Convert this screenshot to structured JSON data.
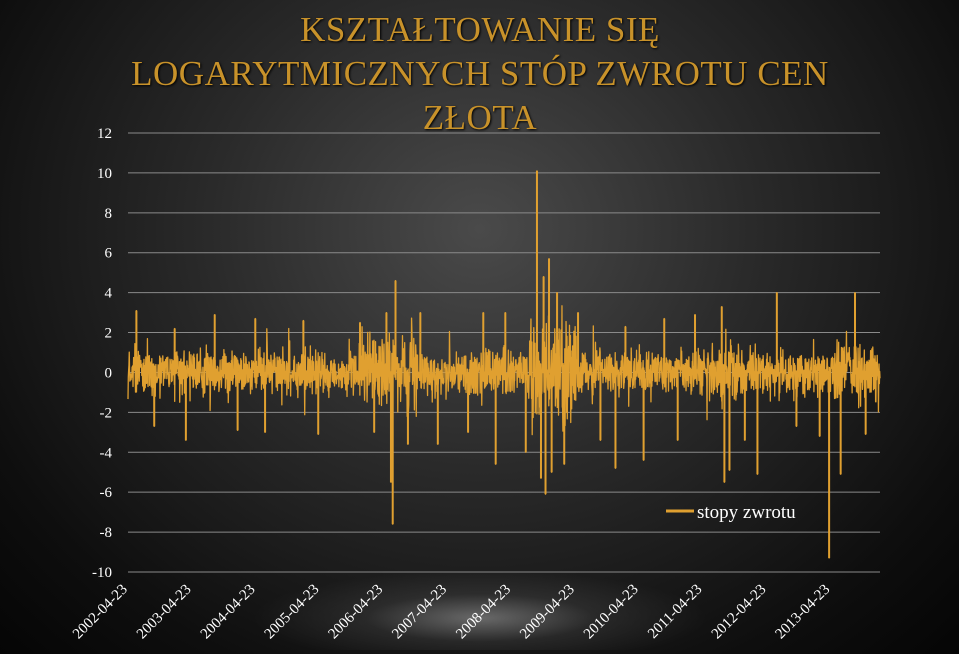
{
  "chart_data": {
    "type": "line",
    "title_lines": [
      "KSZTAŁTOWANIE SIĘ",
      "LOGARYTMICZNYCH STÓP ZWROTU CEN",
      "ZŁOTA"
    ],
    "ylim": [
      -10,
      12
    ],
    "y_ticks": [
      "12",
      "10",
      "8",
      "6",
      "4",
      "2",
      "0",
      "-2",
      "-4",
      "-6",
      "-8",
      "-10"
    ],
    "x_ticks": [
      "2002-04-23",
      "2003-04-23",
      "2004-04-23",
      "2005-04-23",
      "2006-04-23",
      "2007-04-23",
      "2008-04-23",
      "2009-04-23",
      "2010-04-23",
      "2011-04-23",
      "2012-04-23",
      "2013-04-23"
    ],
    "x_range": [
      "2002-04-23",
      "2014-01-31"
    ],
    "grid": true,
    "legend_position": "bottom-right",
    "series": [
      {
        "name": "stopy zwrotu",
        "color": "#e0a030",
        "spikes": [
          {
            "date": "2002-06-10",
            "value": 3.1
          },
          {
            "date": "2002-09-20",
            "value": -2.7
          },
          {
            "date": "2003-01-15",
            "value": 2.2
          },
          {
            "date": "2003-03-20",
            "value": -3.4
          },
          {
            "date": "2003-09-01",
            "value": 2.9
          },
          {
            "date": "2004-01-10",
            "value": -2.9
          },
          {
            "date": "2004-04-20",
            "value": 2.7
          },
          {
            "date": "2004-06-15",
            "value": -3.0
          },
          {
            "date": "2005-01-20",
            "value": 2.6
          },
          {
            "date": "2005-04-15",
            "value": -3.1
          },
          {
            "date": "2005-12-10",
            "value": 2.5
          },
          {
            "date": "2006-03-01",
            "value": -3.0
          },
          {
            "date": "2006-05-10",
            "value": 3.0
          },
          {
            "date": "2006-06-05",
            "value": -5.5
          },
          {
            "date": "2006-06-15",
            "value": -7.6
          },
          {
            "date": "2006-07-01",
            "value": 4.6
          },
          {
            "date": "2006-09-10",
            "value": -3.6
          },
          {
            "date": "2006-11-20",
            "value": 3.0
          },
          {
            "date": "2007-02-28",
            "value": -3.6
          },
          {
            "date": "2007-08-20",
            "value": -3.0
          },
          {
            "date": "2007-11-15",
            "value": 3.0
          },
          {
            "date": "2008-01-25",
            "value": -4.6
          },
          {
            "date": "2008-03-20",
            "value": 3.0
          },
          {
            "date": "2008-07-15",
            "value": -4.0
          },
          {
            "date": "2008-09-17",
            "value": 10.1
          },
          {
            "date": "2008-10-10",
            "value": -5.3
          },
          {
            "date": "2008-10-25",
            "value": 4.8
          },
          {
            "date": "2008-11-05",
            "value": -6.1
          },
          {
            "date": "2008-11-25",
            "value": 5.7
          },
          {
            "date": "2008-12-10",
            "value": -5.0
          },
          {
            "date": "2009-01-10",
            "value": 4.0
          },
          {
            "date": "2009-02-20",
            "value": -4.6
          },
          {
            "date": "2009-05-10",
            "value": 3.0
          },
          {
            "date": "2009-09-15",
            "value": -3.4
          },
          {
            "date": "2009-12-10",
            "value": -4.8
          },
          {
            "date": "2010-02-05",
            "value": 2.3
          },
          {
            "date": "2010-05-20",
            "value": -4.4
          },
          {
            "date": "2010-09-15",
            "value": 2.7
          },
          {
            "date": "2010-12-01",
            "value": -3.4
          },
          {
            "date": "2011-03-10",
            "value": 2.9
          },
          {
            "date": "2011-08-10",
            "value": 3.3
          },
          {
            "date": "2011-08-25",
            "value": -5.5
          },
          {
            "date": "2011-09-23",
            "value": -4.9
          },
          {
            "date": "2011-12-20",
            "value": -3.4
          },
          {
            "date": "2012-03-01",
            "value": -5.1
          },
          {
            "date": "2012-06-20",
            "value": 4.0
          },
          {
            "date": "2012-10-10",
            "value": -2.7
          },
          {
            "date": "2013-02-20",
            "value": -3.2
          },
          {
            "date": "2013-04-15",
            "value": -9.3
          },
          {
            "date": "2013-06-20",
            "value": -5.1
          },
          {
            "date": "2013-09-10",
            "value": 4.0
          },
          {
            "date": "2013-11-10",
            "value": -3.1
          }
        ]
      }
    ]
  }
}
